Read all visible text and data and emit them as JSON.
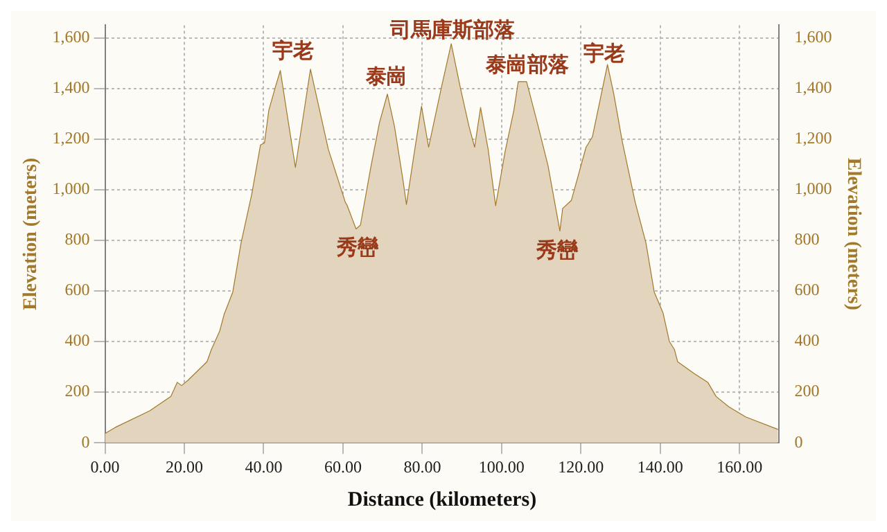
{
  "chart_data": {
    "type": "area",
    "xlabel": "Distance (kilometers)",
    "ylabel": "Elevation (meters)",
    "y2label": "Elevation (meters)",
    "x": [
      0,
      2.6,
      11.2,
      16.6,
      18.2,
      19.3,
      20.9,
      25.7,
      26.8,
      28.9,
      30,
      32.2,
      34.3,
      37,
      39.2,
      40.2,
      41.3,
      42.9,
      44.2,
      48,
      51.8,
      56.3,
      60.6,
      61,
      63.3,
      64.4,
      67.1,
      69.2,
      71.2,
      73,
      75.2,
      76,
      77.8,
      79.8,
      81.6,
      82.7,
      84.8,
      87.3,
      89.6,
      91.8,
      93.2,
      94.7,
      96.6,
      98.5,
      100.9,
      103.1,
      104.2,
      106.3,
      109,
      111.7,
      114.7,
      115.4,
      117.6,
      121.3,
      122.9,
      126.7,
      128.3,
      130.4,
      133.7,
      136.4,
      138.5,
      140.7,
      142.3,
      143.6,
      144.4,
      148.7,
      152,
      154.1,
      157.3,
      161.6,
      169.7
    ],
    "series": [
      {
        "color": "#a2782a",
        "values": [
          37,
          61,
          126,
          183,
          239,
          226,
          247,
          320,
          368,
          441,
          506,
          595,
          790,
          983,
          1177,
          1185,
          1314,
          1403,
          1471,
          1088,
          1476,
          1160,
          950,
          940,
          845,
          860,
          1096,
          1265,
          1378,
          1249,
          1031,
          942,
          1128,
          1330,
          1168,
          1249,
          1403,
          1577,
          1403,
          1249,
          1168,
          1325,
          1160,
          937,
          1152,
          1314,
          1427,
          1427,
          1265,
          1096,
          837,
          926,
          958,
          1168,
          1209,
          1495,
          1378,
          1193,
          950,
          790,
          595,
          514,
          401,
          368,
          320,
          272,
          239,
          183,
          142,
          102,
          53
        ]
      }
    ],
    "xlim": [
      0,
      170
    ],
    "xticks": [
      {
        "value": 0,
        "label": "0.00"
      },
      {
        "value": 20,
        "label": "20.00"
      },
      {
        "value": 40,
        "label": "40.00"
      },
      {
        "value": 60,
        "label": "60.00"
      },
      {
        "value": 80,
        "label": "80.00"
      },
      {
        "value": 100,
        "label": "100.00"
      },
      {
        "value": 120,
        "label": "120.00"
      },
      {
        "value": 140,
        "label": "140.00"
      },
      {
        "value": 160,
        "label": "160.00"
      }
    ],
    "ylim": [
      0,
      1650
    ],
    "yticks": [
      0,
      200,
      400,
      600,
      800,
      {
        "value": 1000,
        "label": "1,000"
      },
      {
        "value": 1200,
        "label": "1,200"
      },
      {
        "value": 1400,
        "label": "1,400"
      },
      {
        "value": 1600,
        "label": "1,600"
      }
    ],
    "y2lim": [
      0,
      1650
    ],
    "y2ticks": [
      0,
      200,
      400,
      600,
      800,
      {
        "value": 1000,
        "label": "1,000"
      },
      {
        "value": 1200,
        "label": "1,200"
      },
      {
        "value": 1400,
        "label": "1,400"
      },
      {
        "value": 1600,
        "label": "1,600"
      }
    ],
    "grid": true,
    "legend": false,
    "marker": "none",
    "line_style": "solid",
    "annotations": [
      "宇老",
      "泰崗",
      "司馬庫斯部落",
      "泰崗部落",
      "宇老",
      "秀巒",
      "秀巒"
    ]
  }
}
